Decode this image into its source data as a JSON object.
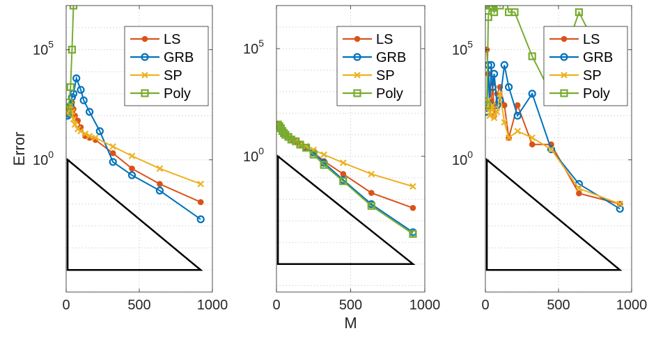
{
  "chart_data": [
    {
      "type": "line",
      "xlabel": "",
      "ylabel": "Error",
      "yscale": "log",
      "xlim": [
        0,
        1000
      ],
      "ylim": [
        1e-06,
        10000000
      ],
      "xticks": [
        {
          "v": 0,
          "label": "0"
        },
        {
          "v": 500,
          "label": "500"
        },
        {
          "v": 1000,
          "label": "1000"
        }
      ],
      "yticks": [
        {
          "v": 1,
          "base": "10",
          "exp": "0"
        },
        {
          "v": 100000,
          "base": "10",
          "exp": "5"
        }
      ],
      "grid": true,
      "legend": "top-right",
      "triangle": {
        "x": [
          10,
          920
        ],
        "y": [
          1,
          1e-05
        ]
      },
      "series": [
        {
          "name": "LS",
          "color": "#d95319",
          "marker": "dot",
          "x": [
            10,
            20,
            30,
            40,
            50,
            60,
            80,
            100,
            130,
            160,
            200,
            320,
            450,
            640,
            920
          ],
          "y": [
            200,
            150,
            300,
            400,
            200,
            100,
            60,
            30,
            12,
            10,
            8,
            2,
            0.4,
            0.08,
            0.012
          ]
        },
        {
          "name": "GRB",
          "color": "#0072bd",
          "marker": "circle",
          "x": [
            10,
            20,
            30,
            40,
            50,
            70,
            100,
            120,
            160,
            230,
            320,
            450,
            640,
            920
          ],
          "y": [
            100,
            120,
            300,
            700,
            1000,
            5000,
            1500,
            500,
            150,
            20,
            0.8,
            0.2,
            0.04,
            0.002
          ]
        },
        {
          "name": "SP",
          "color": "#edb120",
          "marker": "x",
          "x": [
            10,
            20,
            30,
            40,
            50,
            60,
            80,
            100,
            130,
            160,
            200,
            320,
            450,
            640,
            920
          ],
          "y": [
            130,
            200,
            300,
            150,
            70,
            40,
            25,
            20,
            15,
            12,
            10,
            4,
            1.5,
            0.4,
            0.08
          ]
        },
        {
          "name": "Poly",
          "color": "#77ac30",
          "marker": "square",
          "x": [
            10,
            20,
            30,
            40,
            50
          ],
          "y": [
            150,
            400,
            2000,
            100000,
            10000000
          ]
        }
      ]
    },
    {
      "type": "line",
      "xlabel": "M",
      "ylabel": "",
      "yscale": "log",
      "xlim": [
        0,
        1000
      ],
      "ylim": [
        5e-07,
        10000000
      ],
      "xticks": [
        {
          "v": 0,
          "label": "0"
        },
        {
          "v": 500,
          "label": "500"
        },
        {
          "v": 1000,
          "label": "1000"
        }
      ],
      "yticks": [
        {
          "v": 1,
          "base": "10",
          "exp": "0"
        },
        {
          "v": 100000,
          "base": "10",
          "exp": "5"
        }
      ],
      "grid": true,
      "legend": "top-right",
      "triangle": {
        "x": [
          10,
          920
        ],
        "y": [
          1,
          1e-05
        ]
      },
      "series": [
        {
          "name": "LS",
          "color": "#d95319",
          "marker": "dot",
          "x": [
            10,
            20,
            30,
            40,
            50,
            60,
            80,
            100,
            130,
            160,
            200,
            250,
            320,
            450,
            640,
            920
          ],
          "y": [
            30,
            25,
            20,
            15,
            12,
            10,
            8,
            6,
            5,
            3.5,
            2.5,
            1.5,
            0.6,
            0.15,
            0.02,
            0.004
          ]
        },
        {
          "name": "GRB",
          "color": "#0072bd",
          "marker": "circle",
          "x": [
            10,
            20,
            30,
            40,
            50,
            60,
            80,
            100,
            130,
            160,
            200,
            250,
            320,
            450,
            640,
            920
          ],
          "y": [
            30,
            25,
            20,
            15,
            12,
            10,
            8,
            6,
            5,
            3.5,
            2.5,
            1.5,
            0.5,
            0.08,
            0.006,
            0.0003
          ]
        },
        {
          "name": "SP",
          "color": "#edb120",
          "marker": "x",
          "x": [
            10,
            20,
            30,
            40,
            50,
            60,
            80,
            100,
            130,
            160,
            200,
            250,
            320,
            450,
            640,
            920
          ],
          "y": [
            30,
            25,
            20,
            15,
            12,
            10,
            8,
            6,
            5,
            3.5,
            3,
            2,
            1.2,
            0.5,
            0.15,
            0.04
          ]
        },
        {
          "name": "Poly",
          "color": "#77ac30",
          "marker": "square",
          "x": [
            10,
            20,
            30,
            40,
            50,
            60,
            80,
            100,
            130,
            160,
            200,
            250,
            320,
            450,
            640,
            920
          ],
          "y": [
            30,
            25,
            20,
            15,
            12,
            10,
            8,
            6,
            5,
            3.5,
            2.5,
            1.2,
            0.4,
            0.07,
            0.005,
            0.00025
          ]
        }
      ]
    },
    {
      "type": "line",
      "xlabel": "",
      "ylabel": "",
      "yscale": "log",
      "xlim": [
        0,
        1000
      ],
      "ylim": [
        1e-06,
        10000000
      ],
      "xticks": [
        {
          "v": 0,
          "label": "0"
        },
        {
          "v": 500,
          "label": "500"
        },
        {
          "v": 1000,
          "label": "1000"
        }
      ],
      "yticks": [
        {
          "v": 1,
          "base": "10",
          "exp": "0"
        },
        {
          "v": 100000,
          "base": "10",
          "exp": "5"
        }
      ],
      "grid": true,
      "legend": "top-right",
      "triangle": {
        "x": [
          10,
          920
        ],
        "y": [
          1,
          1e-05
        ]
      },
      "series": [
        {
          "name": "LS",
          "color": "#d95319",
          "marker": "dot",
          "x": [
            10,
            20,
            30,
            40,
            50,
            60,
            80,
            100,
            130,
            160,
            220,
            320,
            450,
            640,
            920
          ],
          "y": [
            100000,
            8000,
            200,
            500,
            3000,
            100,
            1000,
            2000,
            300,
            10,
            300,
            5,
            5,
            0.03,
            0.01
          ]
        },
        {
          "name": "GRB",
          "color": "#0072bd",
          "marker": "circle",
          "x": [
            10,
            20,
            30,
            40,
            50,
            60,
            80,
            100,
            130,
            160,
            220,
            320,
            450,
            640,
            920
          ],
          "y": [
            150,
            20000,
            300,
            20000,
            2000,
            8000,
            300,
            500,
            20000,
            2000,
            100,
            1000,
            3,
            0.08,
            0.006
          ]
        },
        {
          "name": "SP",
          "color": "#edb120",
          "marker": "x",
          "x": [
            10,
            20,
            30,
            40,
            50,
            60,
            80,
            100,
            130,
            160,
            220,
            320,
            450,
            640,
            920
          ],
          "y": [
            200,
            500,
            100,
            200,
            300,
            80,
            150,
            1000,
            50,
            10,
            20,
            10,
            3,
            0.05,
            0.01
          ]
        },
        {
          "name": "Poly",
          "color": "#77ac30",
          "marker": "square",
          "x": [
            10,
            20,
            30,
            40,
            50,
            60,
            80,
            100,
            130,
            160,
            200,
            320,
            450,
            640,
            920
          ],
          "y": [
            300,
            3000000,
            10000000,
            10000000,
            8000000,
            5000000,
            20000000,
            10000000,
            50000000,
            5000000,
            5000000,
            50000,
            1000,
            5000000,
            1000
          ]
        }
      ]
    }
  ]
}
